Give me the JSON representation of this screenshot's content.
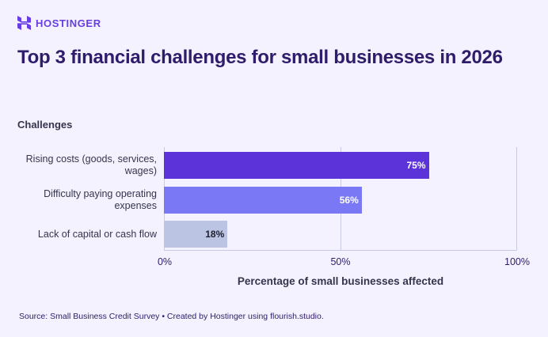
{
  "brand": {
    "name": "HOSTINGER",
    "color": "#673de6",
    "icon": "hostinger-logo-icon"
  },
  "title": "Top 3 financial challenges for small businesses in 2026",
  "y_axis_title": "Challenges",
  "x_axis_title": "Percentage of small businesses affected",
  "source": "Source: Small Business Credit Survey • Created by Hostinger using flourish.studio.",
  "ticks": [
    "0%",
    "50%",
    "100%"
  ],
  "bars": [
    {
      "label": "Rising costs (goods, services, wages)",
      "value": 75,
      "display": "75%",
      "color": "#5c33d9",
      "text_color": "#ffffff"
    },
    {
      "label": "Difficulty paying operating expenses",
      "value": 56,
      "display": "56%",
      "color": "#7b78f6",
      "text_color": "#ffffff"
    },
    {
      "label": "Lack of capital or cash flow",
      "value": 18,
      "display": "18%",
      "color": "#bcc4e4",
      "text_color": "#1d1e2c"
    }
  ],
  "chart_data": {
    "type": "bar",
    "orientation": "horizontal",
    "title": "Top 3 financial challenges for small businesses in 2026",
    "categories": [
      "Rising costs (goods, services, wages)",
      "Difficulty paying operating expenses",
      "Lack of capital or cash flow"
    ],
    "values": [
      75,
      56,
      18
    ],
    "value_labels": [
      "75%",
      "56%",
      "18%"
    ],
    "xlabel": "Percentage of small businesses affected",
    "ylabel": "Challenges",
    "xlim": [
      0,
      100
    ],
    "x_ticks": [
      "0%",
      "50%",
      "100%"
    ],
    "grid": true,
    "legend": null,
    "source": "Source: Small Business Credit Survey • Created by Hostinger using flourish.studio."
  }
}
